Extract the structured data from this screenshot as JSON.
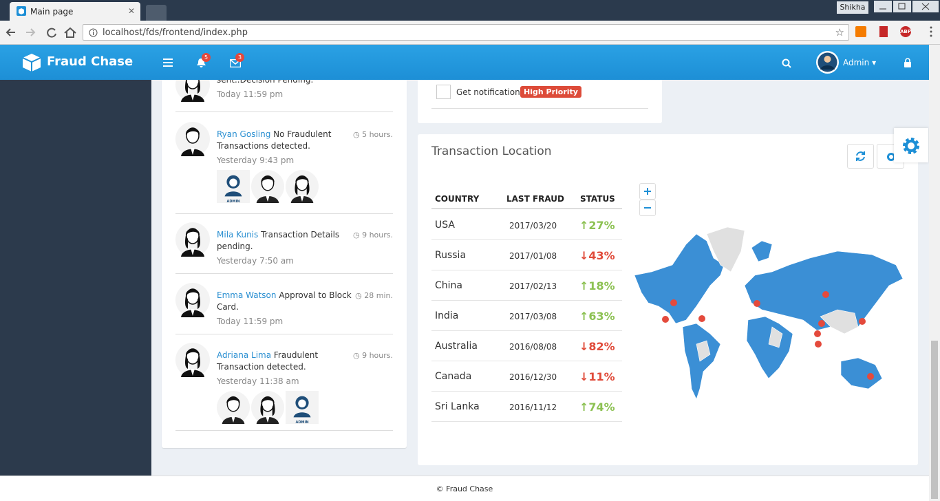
{
  "browser": {
    "tab_title": "Main page",
    "user": "Shikha",
    "url": "localhost/fds/frontend/index.php",
    "extension": "ABP"
  },
  "header": {
    "brand": "Fraud Chase",
    "notifications_badge": "5",
    "messages_badge": "3",
    "user_name": "Admin"
  },
  "feed": {
    "admin_label": "ADMIN",
    "items": [
      {
        "text": "sent..Decision Pending.",
        "date": "Today 11:59 pm"
      },
      {
        "name": "Ryan Gosling",
        "text": "No Fraudulent Transactions detected.",
        "time": "5 hours.",
        "date": "Yesterday 9:43 pm"
      },
      {
        "name": "Mila Kunis",
        "text": "Transaction Details pending.",
        "time": "9 hours.",
        "date": "Yesterday 7:50 am"
      },
      {
        "name": "Emma Watson",
        "text": "Approval to Block Card.",
        "time": "28 min.",
        "date": "Today 11:59 pm"
      },
      {
        "name": "Adriana Lima",
        "text": "Fraudulent Transaction detected.",
        "time": "9 hours.",
        "date": "Yesterday 11:38 am"
      }
    ]
  },
  "notification": {
    "label": "Get notification",
    "tag": "High Priority"
  },
  "location": {
    "title": "Transaction Location",
    "table": {
      "columns": [
        "COUNTRY",
        "LAST FRAUD",
        "STATUS"
      ],
      "rows": [
        {
          "country": "USA",
          "last_fraud": "2017/03/20",
          "status": "27%",
          "trend": "up"
        },
        {
          "country": "Russia",
          "last_fraud": "2017/01/08",
          "status": "43%",
          "trend": "down"
        },
        {
          "country": "China",
          "last_fraud": "2017/02/13",
          "status": "18%",
          "trend": "up"
        },
        {
          "country": "India",
          "last_fraud": "2017/03/08",
          "status": "63%",
          "trend": "up"
        },
        {
          "country": "Australia",
          "last_fraud": "2016/08/08",
          "status": "82%",
          "trend": "down"
        },
        {
          "country": "Canada",
          "last_fraud": "2016/12/30",
          "status": "11%",
          "trend": "down"
        },
        {
          "country": "Sri Lanka",
          "last_fraud": "2016/11/12",
          "status": "74%",
          "trend": "up"
        }
      ]
    }
  },
  "footer": {
    "text": "© Fraud Chase"
  }
}
